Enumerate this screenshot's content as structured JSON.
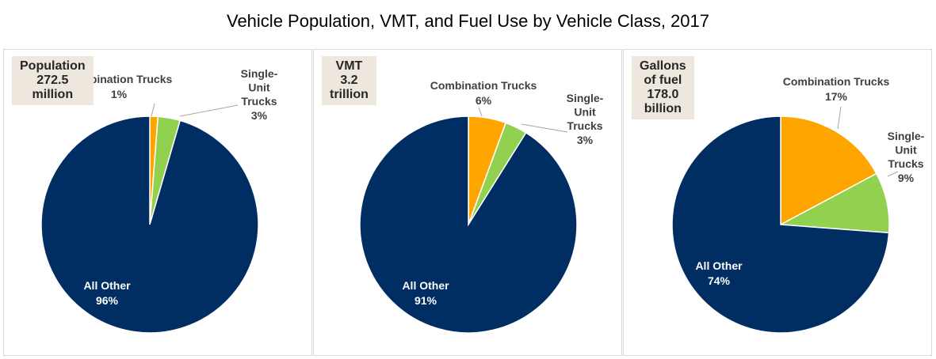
{
  "title": "Vehicle Population, VMT, and Fuel Use by Vehicle Class, 2017",
  "colors": {
    "combination": "#ffa500",
    "single_unit": "#92d050",
    "other": "#002d62"
  },
  "chart_data": [
    {
      "type": "pie",
      "box_label": [
        "Population",
        "272.5",
        "million"
      ],
      "slices": [
        {
          "label": "Combination Trucks",
          "value_label": "1%",
          "value": 1.2
        },
        {
          "label": "Single-Unit Trucks",
          "value_label": "3%",
          "value": 3.3
        },
        {
          "label": "All Other",
          "value_label": "96%",
          "value": 95.5
        }
      ]
    },
    {
      "type": "pie",
      "box_label": [
        "VMT",
        "3.2",
        "trillion"
      ],
      "slices": [
        {
          "label": "Combination Trucks",
          "value_label": "6%",
          "value": 5.6
        },
        {
          "label": "Single-Unit Trucks",
          "value_label": "3%",
          "value": 3.3
        },
        {
          "label": "All Other",
          "value_label": "91%",
          "value": 91.1
        }
      ]
    },
    {
      "type": "pie",
      "box_label": [
        "Gallons",
        "of fuel",
        "178.0",
        "billion"
      ],
      "slices": [
        {
          "label": "Combination Trucks",
          "value_label": "17%",
          "value": 17.2
        },
        {
          "label": "Single-Unit Trucks",
          "value_label": "9%",
          "value": 9.0
        },
        {
          "label": "All Other",
          "value_label": "74%",
          "value": 73.8
        }
      ]
    }
  ]
}
